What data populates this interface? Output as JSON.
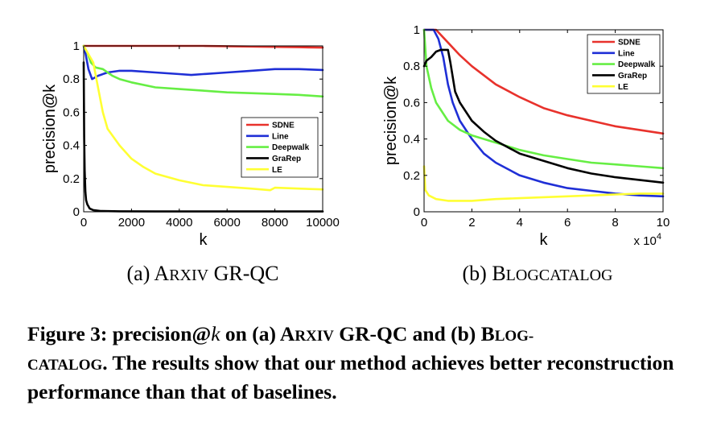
{
  "chart_data": [
    {
      "type": "line",
      "caption_prefix": "(a)",
      "caption_lead": "A",
      "caption_sc": "RXIV",
      "caption_rest": " GR-QC",
      "xlabel": "k",
      "ylabel": "precision@k",
      "xlim": [
        0,
        10000
      ],
      "ylim": [
        0,
        1
      ],
      "xticks": [
        0,
        2000,
        4000,
        6000,
        8000,
        10000
      ],
      "xtick_labels": [
        "0",
        "2000",
        "4000",
        "6000",
        "8000",
        "10000"
      ],
      "yticks": [
        0,
        0.2,
        0.4,
        0.6,
        0.8,
        1
      ],
      "ytick_labels": [
        "0",
        "0.2",
        "0.4",
        "0.6",
        "0.8",
        "1"
      ],
      "x_multiplier": "",
      "legend_position": "center-right",
      "grid": false,
      "series": [
        {
          "name": "SDNE",
          "color": "#e8322c",
          "points": [
            [
              0,
              1.0
            ],
            [
              200,
              1.0
            ],
            [
              1000,
              1.0
            ],
            [
              2000,
              1.0
            ],
            [
              3000,
              1.0
            ],
            [
              4000,
              1.0
            ],
            [
              5000,
              1.0
            ],
            [
              6000,
              0.998
            ],
            [
              7000,
              0.996
            ],
            [
              8000,
              0.994
            ],
            [
              9000,
              0.992
            ],
            [
              10000,
              0.99
            ]
          ]
        },
        {
          "name": "Line",
          "color": "#1f2fd6",
          "points": [
            [
              0,
              1.0
            ],
            [
              80,
              0.95
            ],
            [
              200,
              0.86
            ],
            [
              350,
              0.8
            ],
            [
              600,
              0.82
            ],
            [
              1000,
              0.84
            ],
            [
              1500,
              0.85
            ],
            [
              2000,
              0.85
            ],
            [
              3000,
              0.84
            ],
            [
              4000,
              0.83
            ],
            [
              4500,
              0.825
            ],
            [
              5000,
              0.83
            ],
            [
              6000,
              0.84
            ],
            [
              7000,
              0.85
            ],
            [
              8000,
              0.86
            ],
            [
              9000,
              0.86
            ],
            [
              10000,
              0.855
            ]
          ]
        },
        {
          "name": "Deepwalk",
          "color": "#66ee44",
          "points": [
            [
              0,
              1.0
            ],
            [
              150,
              0.96
            ],
            [
              300,
              0.9
            ],
            [
              500,
              0.87
            ],
            [
              800,
              0.86
            ],
            [
              1200,
              0.82
            ],
            [
              1500,
              0.8
            ],
            [
              2000,
              0.78
            ],
            [
              3000,
              0.75
            ],
            [
              4000,
              0.74
            ],
            [
              5000,
              0.73
            ],
            [
              6000,
              0.72
            ],
            [
              7000,
              0.715
            ],
            [
              8000,
              0.71
            ],
            [
              9000,
              0.705
            ],
            [
              10000,
              0.695
            ]
          ]
        },
        {
          "name": "GraRep",
          "color": "#000000",
          "points": [
            [
              0,
              0.9
            ],
            [
              20,
              0.45
            ],
            [
              40,
              0.25
            ],
            [
              70,
              0.12
            ],
            [
              100,
              0.07
            ],
            [
              150,
              0.045
            ],
            [
              250,
              0.02
            ],
            [
              400,
              0.01
            ],
            [
              700,
              0.005
            ],
            [
              1500,
              0.003
            ],
            [
              3000,
              0.002
            ],
            [
              10000,
              0.002
            ]
          ]
        },
        {
          "name": "LE",
          "color": "#ffff33",
          "points": [
            [
              0,
              1.0
            ],
            [
              200,
              0.95
            ],
            [
              400,
              0.9
            ],
            [
              600,
              0.75
            ],
            [
              800,
              0.6
            ],
            [
              1000,
              0.5
            ],
            [
              1500,
              0.4
            ],
            [
              2000,
              0.32
            ],
            [
              2500,
              0.27
            ],
            [
              3000,
              0.23
            ],
            [
              4000,
              0.19
            ],
            [
              5000,
              0.16
            ],
            [
              6000,
              0.15
            ],
            [
              7000,
              0.14
            ],
            [
              7800,
              0.13
            ],
            [
              8000,
              0.145
            ],
            [
              9000,
              0.14
            ],
            [
              10000,
              0.135
            ]
          ]
        }
      ]
    },
    {
      "type": "line",
      "caption_prefix": "(b)",
      "caption_lead": "B",
      "caption_sc": "LOGCATALOG",
      "caption_rest": "",
      "xlabel": "k",
      "ylabel": "precision@k",
      "xlim": [
        0,
        10
      ],
      "ylim": [
        0,
        1
      ],
      "xticks": [
        0,
        2,
        4,
        6,
        8,
        10
      ],
      "xtick_labels": [
        "0",
        "2",
        "4",
        "6",
        "8",
        "10"
      ],
      "yticks": [
        0,
        0.2,
        0.4,
        0.6,
        0.8,
        1
      ],
      "ytick_labels": [
        "0",
        "0.2",
        "0.4",
        "0.6",
        "0.8",
        "1"
      ],
      "x_multiplier": "x 10",
      "x_multiplier_exp": "4",
      "legend_position": "top-right",
      "grid": false,
      "series": [
        {
          "name": "SDNE",
          "color": "#e8322c",
          "points": [
            [
              0,
              1.0
            ],
            [
              0.5,
              1.0
            ],
            [
              1.0,
              0.93
            ],
            [
              1.5,
              0.86
            ],
            [
              2,
              0.8
            ],
            [
              3,
              0.7
            ],
            [
              4,
              0.63
            ],
            [
              5,
              0.57
            ],
            [
              6,
              0.53
            ],
            [
              7,
              0.5
            ],
            [
              8,
              0.47
            ],
            [
              9,
              0.45
            ],
            [
              10,
              0.43
            ]
          ]
        },
        {
          "name": "Line",
          "color": "#1f2fd6",
          "points": [
            [
              0,
              1.0
            ],
            [
              0.4,
              1.0
            ],
            [
              0.6,
              0.95
            ],
            [
              0.8,
              0.85
            ],
            [
              1.0,
              0.7
            ],
            [
              1.2,
              0.6
            ],
            [
              1.5,
              0.5
            ],
            [
              2,
              0.4
            ],
            [
              2.5,
              0.32
            ],
            [
              3,
              0.27
            ],
            [
              4,
              0.2
            ],
            [
              5,
              0.16
            ],
            [
              6,
              0.13
            ],
            [
              7,
              0.115
            ],
            [
              8,
              0.1
            ],
            [
              9,
              0.09
            ],
            [
              10,
              0.085
            ]
          ]
        },
        {
          "name": "Deepwalk",
          "color": "#66ee44",
          "points": [
            [
              0,
              1.0
            ],
            [
              0.1,
              0.8
            ],
            [
              0.3,
              0.68
            ],
            [
              0.5,
              0.6
            ],
            [
              1,
              0.5
            ],
            [
              1.5,
              0.45
            ],
            [
              2,
              0.42
            ],
            [
              3,
              0.38
            ],
            [
              4,
              0.34
            ],
            [
              5,
              0.31
            ],
            [
              6,
              0.29
            ],
            [
              7,
              0.27
            ],
            [
              8,
              0.26
            ],
            [
              9,
              0.25
            ],
            [
              10,
              0.24
            ]
          ]
        },
        {
          "name": "GraRep",
          "color": "#000000",
          "points": [
            [
              0,
              0.8
            ],
            [
              0.1,
              0.83
            ],
            [
              0.3,
              0.85
            ],
            [
              0.5,
              0.88
            ],
            [
              0.7,
              0.89
            ],
            [
              1.0,
              0.89
            ],
            [
              1.1,
              0.82
            ],
            [
              1.3,
              0.66
            ],
            [
              1.5,
              0.6
            ],
            [
              2,
              0.5
            ],
            [
              2.5,
              0.44
            ],
            [
              3,
              0.39
            ],
            [
              4,
              0.32
            ],
            [
              5,
              0.28
            ],
            [
              6,
              0.24
            ],
            [
              7,
              0.21
            ],
            [
              8,
              0.19
            ],
            [
              9,
              0.175
            ],
            [
              10,
              0.16
            ]
          ]
        },
        {
          "name": "LE",
          "color": "#ffff33",
          "points": [
            [
              0,
              0.25
            ],
            [
              0.05,
              0.12
            ],
            [
              0.2,
              0.09
            ],
            [
              0.5,
              0.07
            ],
            [
              1,
              0.06
            ],
            [
              2,
              0.06
            ],
            [
              3,
              0.07
            ],
            [
              4,
              0.075
            ],
            [
              5,
              0.08
            ],
            [
              6,
              0.085
            ],
            [
              7,
              0.09
            ],
            [
              8,
              0.095
            ],
            [
              9,
              0.1
            ],
            [
              10,
              0.1
            ]
          ]
        }
      ]
    }
  ],
  "caption": {
    "lead": "Figure 3: precision@",
    "var": "k",
    "mid1": " on (a) ",
    "arxiv_lead": "A",
    "arxiv_sc": "RXIV",
    "mid2": " GR-QC and (b) ",
    "blog_lead": "B",
    "blog_sc1": "LOG-",
    "blog_sc2": "CATALOG",
    "rest": ". The results show that our method achieves better reconstruction performance than that of baselines."
  }
}
